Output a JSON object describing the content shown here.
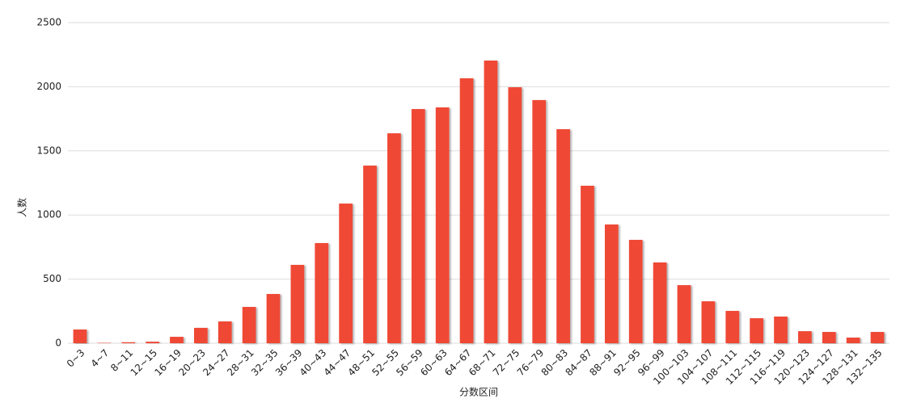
{
  "chart_data": {
    "type": "bar",
    "x_label": "分数区间",
    "y_label": "人数",
    "categories": [
      "0~3",
      "4~7",
      "8~11",
      "12~15",
      "16~19",
      "20~23",
      "24~27",
      "28~31",
      "32~35",
      "36~39",
      "40~43",
      "44~47",
      "48~51",
      "52~55",
      "56~59",
      "60~63",
      "64~67",
      "68~71",
      "72~75",
      "76~79",
      "80~83",
      "84~87",
      "88~91",
      "92~95",
      "96~99",
      "100~103",
      "104~107",
      "108~111",
      "112~115",
      "116~119",
      "120~123",
      "124~127",
      "128~131",
      "132~135"
    ],
    "values": [
      107,
      3,
      8,
      12,
      50,
      120,
      170,
      283,
      384,
      611,
      781,
      1089,
      1385,
      1637,
      1826,
      1839,
      2066,
      2204,
      1996,
      1896,
      1669,
      1228,
      926,
      806,
      630,
      453,
      327,
      252,
      195,
      208,
      94,
      88,
      44,
      88
    ],
    "color": "#ef4836",
    "ylim": [
      0,
      2500
    ],
    "yticks": [
      0,
      500,
      1000,
      1500,
      2000,
      2500
    ],
    "grid": true
  }
}
